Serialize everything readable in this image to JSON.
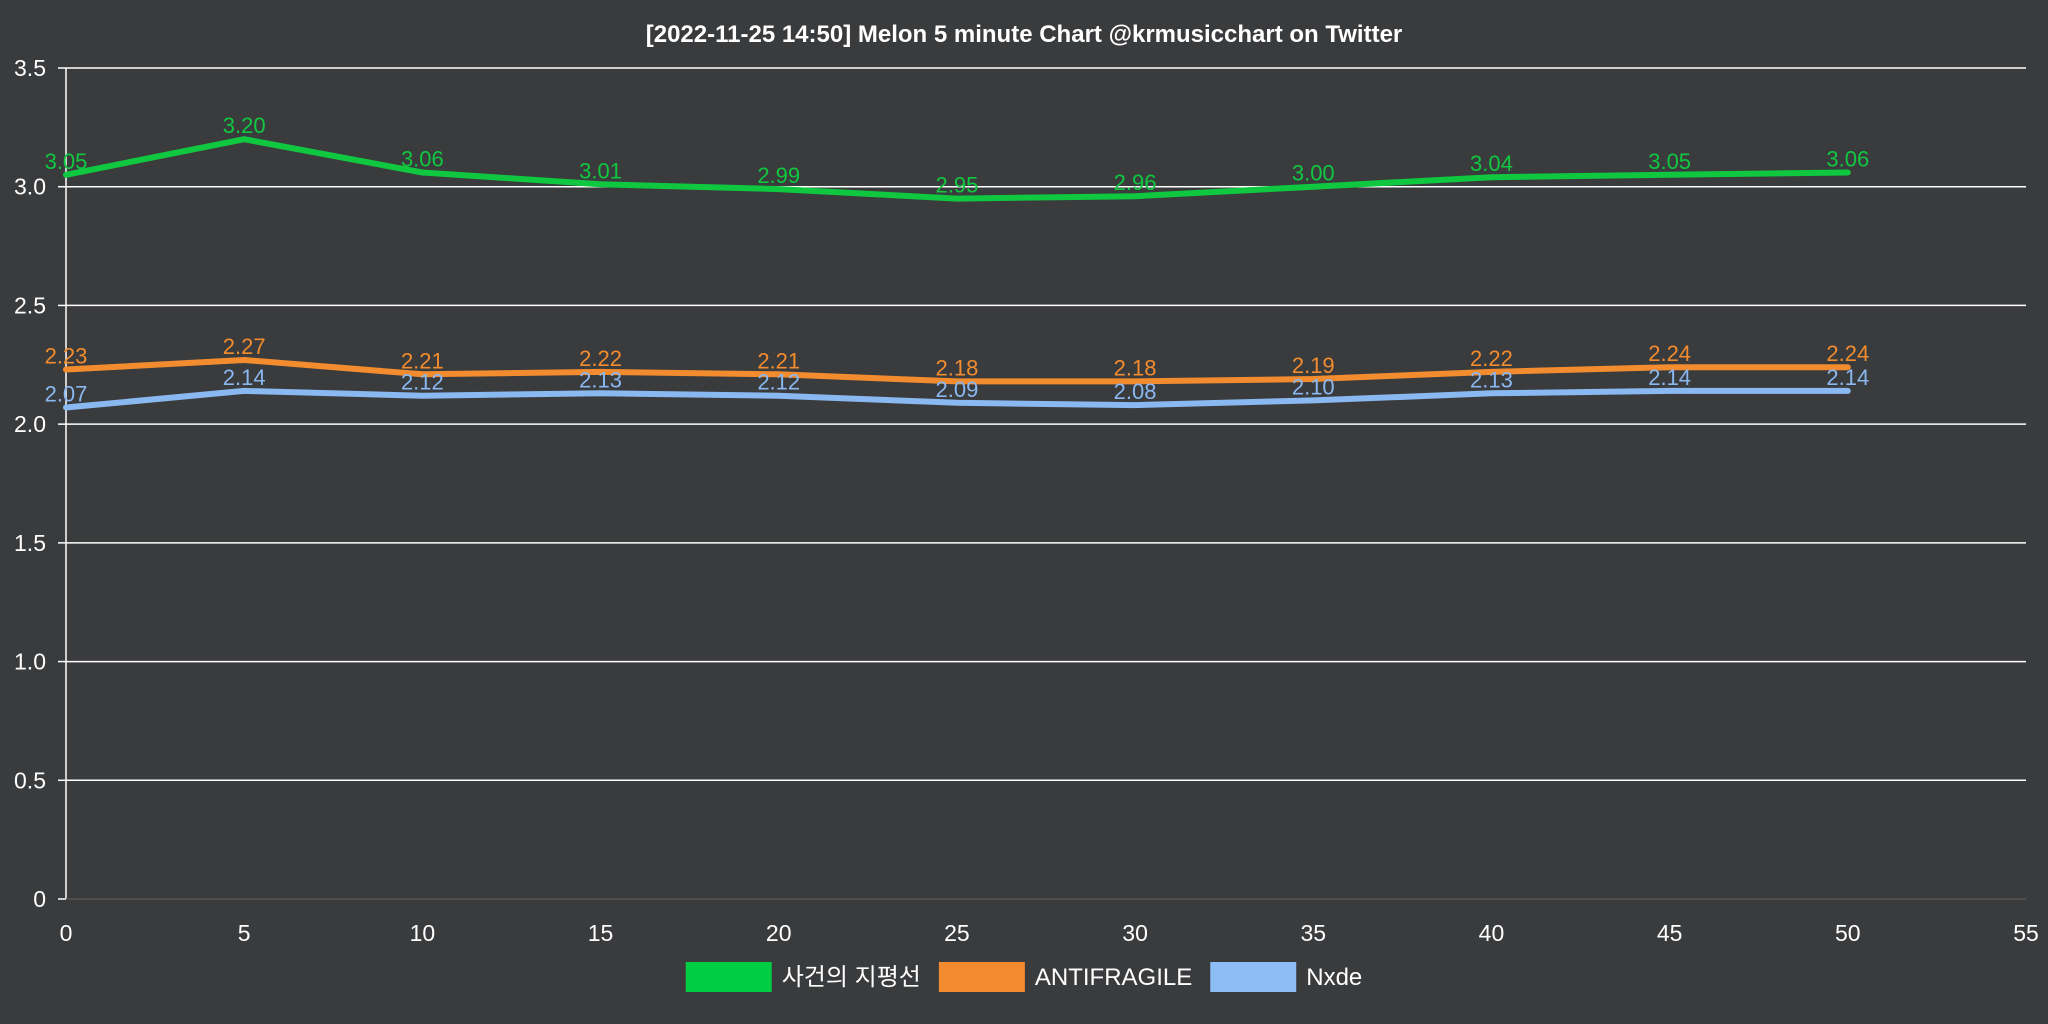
{
  "chart_data": {
    "type": "line",
    "title": "[2022-11-25 14:50]  Melon 5 minute Chart  @krmusicchart on Twitter",
    "xlabel": "",
    "ylabel": "",
    "x": [
      0,
      5,
      10,
      15,
      20,
      25,
      30,
      35,
      40,
      45,
      50
    ],
    "xlim": [
      0,
      55
    ],
    "ylim": [
      0,
      3.5
    ],
    "x_ticks": [
      0,
      5,
      10,
      15,
      20,
      25,
      30,
      35,
      40,
      45,
      50,
      55
    ],
    "y_ticks": [
      0,
      0.5,
      1.0,
      1.5,
      2.0,
      2.5,
      3.0,
      3.5
    ],
    "y_tick_labels": [
      "0",
      "0.5",
      "1.0",
      "1.5",
      "2.0",
      "2.5",
      "3.0",
      "3.5"
    ],
    "grid": true,
    "legend_position": "bottom",
    "series": [
      {
        "name": "사건의 지평선",
        "color": "#10c840",
        "legend_color": "#00cc44",
        "values": [
          3.05,
          3.2,
          3.06,
          3.01,
          2.99,
          2.95,
          2.96,
          3.0,
          3.04,
          3.05,
          3.06
        ],
        "labels": [
          "3.05",
          "3.20",
          "3.06",
          "3.01",
          "2.99",
          "2.95",
          "2.96",
          "3.00",
          "3.04",
          "3.05",
          "3.06"
        ]
      },
      {
        "name": "ANTIFRAGILE",
        "color": "#f28c2e",
        "legend_color": "#f48a30",
        "values": [
          2.23,
          2.27,
          2.21,
          2.22,
          2.21,
          2.18,
          2.18,
          2.19,
          2.22,
          2.24,
          2.24
        ],
        "labels": [
          "2.23",
          "2.27",
          "2.21",
          "2.22",
          "2.21",
          "2.18",
          "2.18",
          "2.19",
          "2.22",
          "2.24",
          "2.24"
        ]
      },
      {
        "name": "Nxde",
        "color": "#8ab8f0",
        "legend_color": "#8ebcf4",
        "values": [
          2.07,
          2.14,
          2.12,
          2.13,
          2.12,
          2.09,
          2.08,
          2.1,
          2.13,
          2.14,
          2.14
        ],
        "labels": [
          "2.07",
          "2.14",
          "2.12",
          "2.13",
          "2.12",
          "2.09",
          "2.08",
          "2.10",
          "2.13",
          "2.14",
          "2.14"
        ]
      }
    ]
  }
}
